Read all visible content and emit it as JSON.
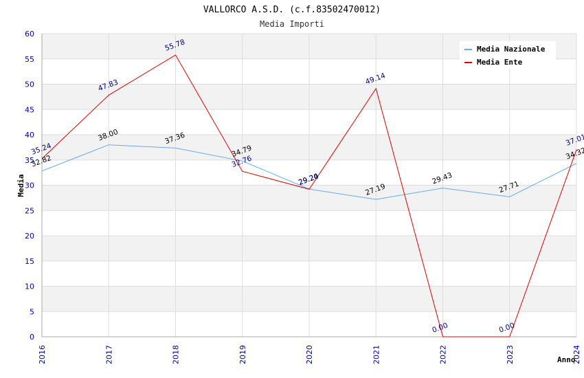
{
  "chart_data": {
    "type": "line",
    "title": "VALLORCO A.S.D. (c.f.83502470012)",
    "subtitle": "Media Importi",
    "xlabel": "Anno",
    "ylabel": "Media",
    "x": [
      "2016",
      "2017",
      "2018",
      "2019",
      "2020",
      "2021",
      "2022",
      "2023",
      "2024"
    ],
    "ylim": [
      0,
      60
    ],
    "yticks": [
      "0",
      "5",
      "10",
      "15",
      "20",
      "25",
      "30",
      "35",
      "40",
      "45",
      "50",
      "55",
      "60"
    ],
    "grid": true,
    "legend_position": "top-right",
    "series": [
      {
        "name": "Media Nazionale",
        "color": "#66aaee",
        "values": [
          32.82,
          38.0,
          37.36,
          34.79,
          29.24,
          27.19,
          29.43,
          27.71,
          34.32
        ],
        "labels": [
          "32.82",
          "38.00",
          "37.36",
          "34.79",
          "29.24",
          "27.19",
          "29.43",
          "27.71",
          "34.32"
        ]
      },
      {
        "name": "Media Ente",
        "color": "#dd0000",
        "values": [
          35.24,
          47.83,
          55.78,
          32.76,
          29.2,
          49.14,
          0.0,
          0.0,
          37.01
        ],
        "labels": [
          "35.24",
          "47.83",
          "55.78",
          "32.76",
          "29.20",
          "49.14",
          "0.00",
          "0.00",
          "37.01"
        ]
      }
    ]
  }
}
